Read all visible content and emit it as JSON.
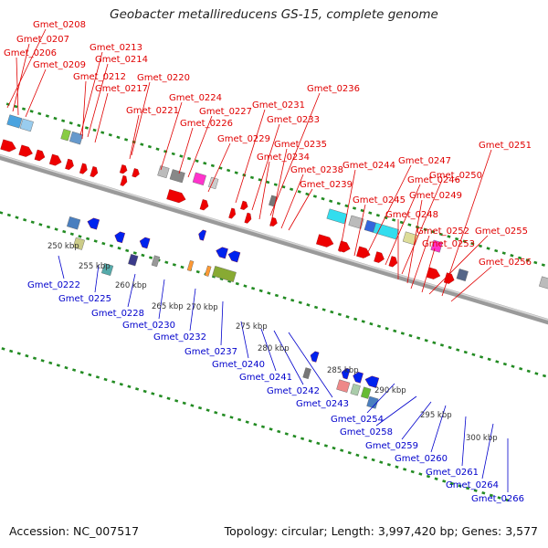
{
  "title": "Geobacter metallireducens GS-15, complete genome",
  "footer": {
    "accession": "Accession: NC_007517",
    "summary": "Topology: circular; Length: 3,997,420 bp; Genes: 3,577"
  },
  "colors": {
    "forward_label": "#e00000",
    "reverse_label": "#0000cc",
    "forward_gene": "#ee0000",
    "reverse_gene": "#0022ee",
    "backbone": "#888888",
    "tick": "#228b22"
  },
  "scale_labels": [
    "250 kbp",
    "255 kbp",
    "260 kbp",
    "265 kbp",
    "270 kbp",
    "275 kbp",
    "280 kbp",
    "285 kbp",
    "290 kbp",
    "295 kbp",
    "300 kbp"
  ],
  "forward_genes": [
    "Gmet_0208",
    "Gmet_0207",
    "Gmet_0206",
    "Gmet_0209",
    "Gmet_0213",
    "Gmet_0214",
    "Gmet_0212",
    "Gmet_0217",
    "Gmet_0220",
    "Gmet_0221",
    "Gmet_0224",
    "Gmet_0227",
    "Gmet_0226",
    "Gmet_0231",
    "Gmet_0236",
    "Gmet_0233",
    "Gmet_0229",
    "Gmet_0235",
    "Gmet_0234",
    "Gmet_0238",
    "Gmet_0239",
    "Gmet_0251",
    "Gmet_0244",
    "Gmet_0247",
    "Gmet_0246",
    "Gmet_0250",
    "Gmet_0245",
    "Gmet_0249",
    "Gmet_0248",
    "Gmet_0252",
    "Gmet_0255",
    "Gmet_0253",
    "Gmet_0256"
  ],
  "reverse_genes": [
    "Gmet_0222",
    "Gmet_0225",
    "Gmet_0228",
    "Gmet_0230",
    "Gmet_0232",
    "Gmet_0237",
    "Gmet_0240",
    "Gmet_0241",
    "Gmet_0242",
    "Gmet_0243",
    "Gmet_0254",
    "Gmet_0258",
    "Gmet_0259",
    "Gmet_0260",
    "Gmet_0261",
    "Gmet_0264",
    "Gmet_0266"
  ]
}
